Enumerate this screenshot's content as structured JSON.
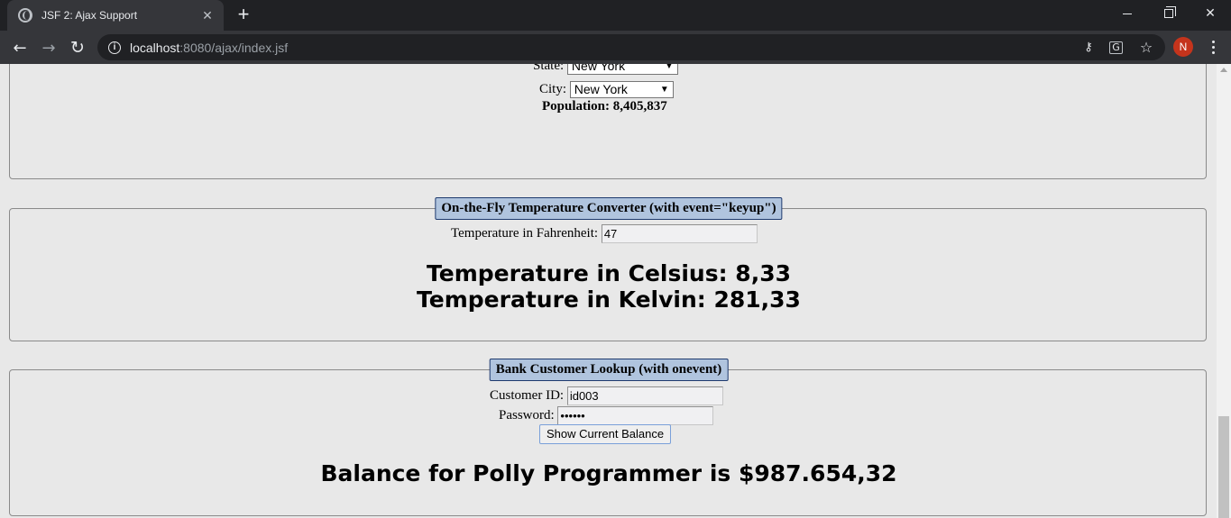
{
  "browser": {
    "tab_title": "JSF 2: Ajax Support",
    "tab_close": "✕",
    "new_tab": "+",
    "url_host": "localhost",
    "url_rest": ":8080/ajax/index.jsf",
    "profile_initial": "N"
  },
  "population_section": {
    "state_label": "State:",
    "state_value": "New York",
    "city_label": "City:",
    "city_value": "New York",
    "population_text": "Population: 8,405,837"
  },
  "temperature_section": {
    "legend": "On-the-Fly Temperature Converter (with event=\"keyup\")",
    "fahrenheit_label": "Temperature in Fahrenheit:",
    "fahrenheit_value": "47",
    "celsius_text": "Temperature in Celsius: 8,33",
    "kelvin_text": "Temperature in Kelvin: 281,33"
  },
  "bank_section": {
    "legend": "Bank Customer Lookup (with onevent)",
    "customer_id_label": "Customer ID:",
    "customer_id_value": "id003",
    "password_label": "Password:",
    "password_value": "••••••",
    "button_label": "Show Current Balance",
    "balance_text": "Balance for Polly Programmer is $987.654,32"
  }
}
